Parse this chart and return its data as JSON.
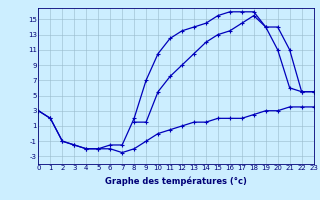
{
  "xlabel": "Graphe des températures (°c)",
  "bg_color": "#cceeff",
  "line_color": "#0000bb",
  "grid_color": "#99bbcc",
  "x_ticks": [
    0,
    1,
    2,
    3,
    4,
    5,
    6,
    7,
    8,
    9,
    10,
    11,
    12,
    13,
    14,
    15,
    16,
    17,
    18,
    19,
    20,
    21,
    22,
    23
  ],
  "y_ticks": [
    -3,
    -1,
    1,
    3,
    5,
    7,
    9,
    11,
    13,
    15
  ],
  "xlim": [
    0,
    23
  ],
  "ylim": [
    -4,
    16.5
  ],
  "line1_x": [
    0,
    1,
    2,
    3,
    4,
    5,
    6,
    7,
    8,
    9,
    10,
    11,
    12,
    13,
    14,
    15,
    16,
    17,
    18,
    19,
    20,
    21,
    22,
    23
  ],
  "line1_y": [
    3,
    2,
    -1,
    -1.5,
    -2,
    -2,
    -2,
    -2.5,
    -2,
    -1,
    0,
    0.5,
    1,
    1.5,
    1.5,
    2,
    2,
    2,
    2.5,
    3,
    3,
    3.5,
    3.5,
    3.5
  ],
  "line2_x": [
    0,
    1,
    2,
    3,
    4,
    5,
    6,
    7,
    8,
    9,
    10,
    11,
    12,
    13,
    14,
    15,
    16,
    17,
    18,
    19,
    20,
    21,
    22,
    23
  ],
  "line2_y": [
    3,
    2,
    -1,
    -1.5,
    -2,
    -2,
    -1.5,
    -1.5,
    2,
    7,
    10.5,
    12.5,
    13.5,
    14,
    14.5,
    15.5,
    16,
    16,
    16,
    14,
    11,
    6,
    5.5,
    5.5
  ],
  "line3_x": [
    8,
    9,
    10,
    11,
    12,
    13,
    14,
    15,
    16,
    17,
    18,
    19,
    20,
    21,
    22,
    23
  ],
  "line3_y": [
    1.5,
    1.5,
    5.5,
    7.5,
    9,
    10.5,
    12,
    13,
    13.5,
    14.5,
    15.5,
    14,
    14,
    11,
    5.5,
    5.5
  ],
  "tick_fontsize": 5,
  "xlabel_fontsize": 6
}
